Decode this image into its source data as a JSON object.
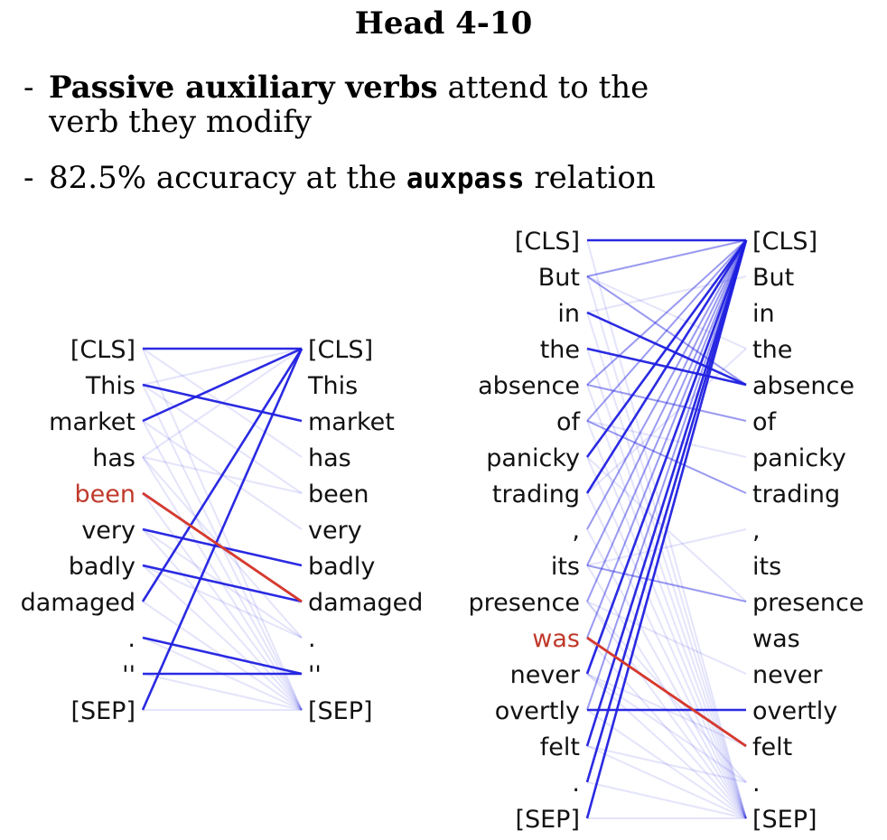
{
  "title": "Head 4-10",
  "bullets": [
    {
      "prefix": "-",
      "bold": "Passive auxiliary verbs",
      "rest_line1": " attend to the",
      "line2": "verb they modify"
    },
    {
      "prefix": "-",
      "pre": "82.5% accuracy at the ",
      "mono": "auxpass",
      "post": " relation"
    }
  ],
  "colors": {
    "edge": "#1f1fe0",
    "highlight": "#d93a2b",
    "highlight_text": "#c0392b"
  },
  "diagrams": [
    {
      "tokens": [
        "[CLS]",
        "This",
        "market",
        "has",
        "been",
        "very",
        "badly",
        "damaged",
        ".",
        "''",
        "[SEP]"
      ],
      "highlight_token": 4,
      "strong_edges": [
        [
          0,
          0
        ],
        [
          1,
          2
        ],
        [
          2,
          0
        ],
        [
          4,
          7
        ],
        [
          5,
          6
        ],
        [
          6,
          7
        ],
        [
          7,
          0
        ],
        [
          8,
          9
        ],
        [
          9,
          9
        ],
        [
          10,
          0
        ]
      ],
      "faint_edges": [
        [
          3,
          4
        ],
        [
          3,
          10
        ],
        [
          5,
          10
        ],
        [
          6,
          10
        ],
        [
          2,
          10
        ],
        [
          1,
          10
        ],
        [
          0,
          10
        ],
        [
          4,
          10
        ],
        [
          7,
          10
        ],
        [
          8,
          10
        ],
        [
          9,
          10
        ],
        [
          10,
          10
        ],
        [
          1,
          0
        ],
        [
          3,
          0
        ],
        [
          5,
          8
        ],
        [
          6,
          8
        ],
        [
          2,
          5
        ],
        [
          1,
          4
        ],
        [
          0,
          3
        ],
        [
          3,
          8
        ]
      ]
    },
    {
      "tokens": [
        "[CLS]",
        "But",
        "in",
        "the",
        "absence",
        "of",
        "panicky",
        "trading",
        ",",
        "its",
        "presence",
        "was",
        "never",
        "overtly",
        "felt",
        ".",
        "[SEP]"
      ],
      "highlight_token": 11,
      "strong_edges": [
        [
          0,
          0
        ],
        [
          2,
          4
        ],
        [
          3,
          4
        ],
        [
          6,
          0
        ],
        [
          7,
          0
        ],
        [
          11,
          14
        ],
        [
          13,
          13
        ],
        [
          14,
          0
        ],
        [
          15,
          0
        ],
        [
          16,
          0
        ],
        [
          12,
          0
        ]
      ],
      "medium_edges": [
        [
          1,
          0
        ],
        [
          4,
          0
        ],
        [
          5,
          0
        ],
        [
          9,
          10
        ],
        [
          10,
          0
        ],
        [
          1,
          4
        ],
        [
          5,
          7
        ],
        [
          4,
          5
        ],
        [
          8,
          0
        ],
        [
          9,
          0
        ],
        [
          11,
          0
        ],
        [
          13,
          0
        ]
      ],
      "faint_edges": [
        [
          1,
          16
        ],
        [
          2,
          16
        ],
        [
          3,
          16
        ],
        [
          4,
          16
        ],
        [
          5,
          16
        ],
        [
          6,
          16
        ],
        [
          7,
          16
        ],
        [
          8,
          16
        ],
        [
          9,
          16
        ],
        [
          10,
          16
        ],
        [
          11,
          16
        ],
        [
          12,
          16
        ],
        [
          13,
          16
        ],
        [
          14,
          16
        ],
        [
          15,
          16
        ],
        [
          16,
          16
        ],
        [
          0,
          16
        ],
        [
          5,
          6
        ],
        [
          6,
          10
        ],
        [
          7,
          3
        ],
        [
          10,
          15
        ],
        [
          12,
          15
        ],
        [
          14,
          15
        ],
        [
          1,
          3
        ],
        [
          2,
          1
        ],
        [
          9,
          8
        ],
        [
          10,
          12
        ],
        [
          12,
          14
        ]
      ]
    }
  ]
}
